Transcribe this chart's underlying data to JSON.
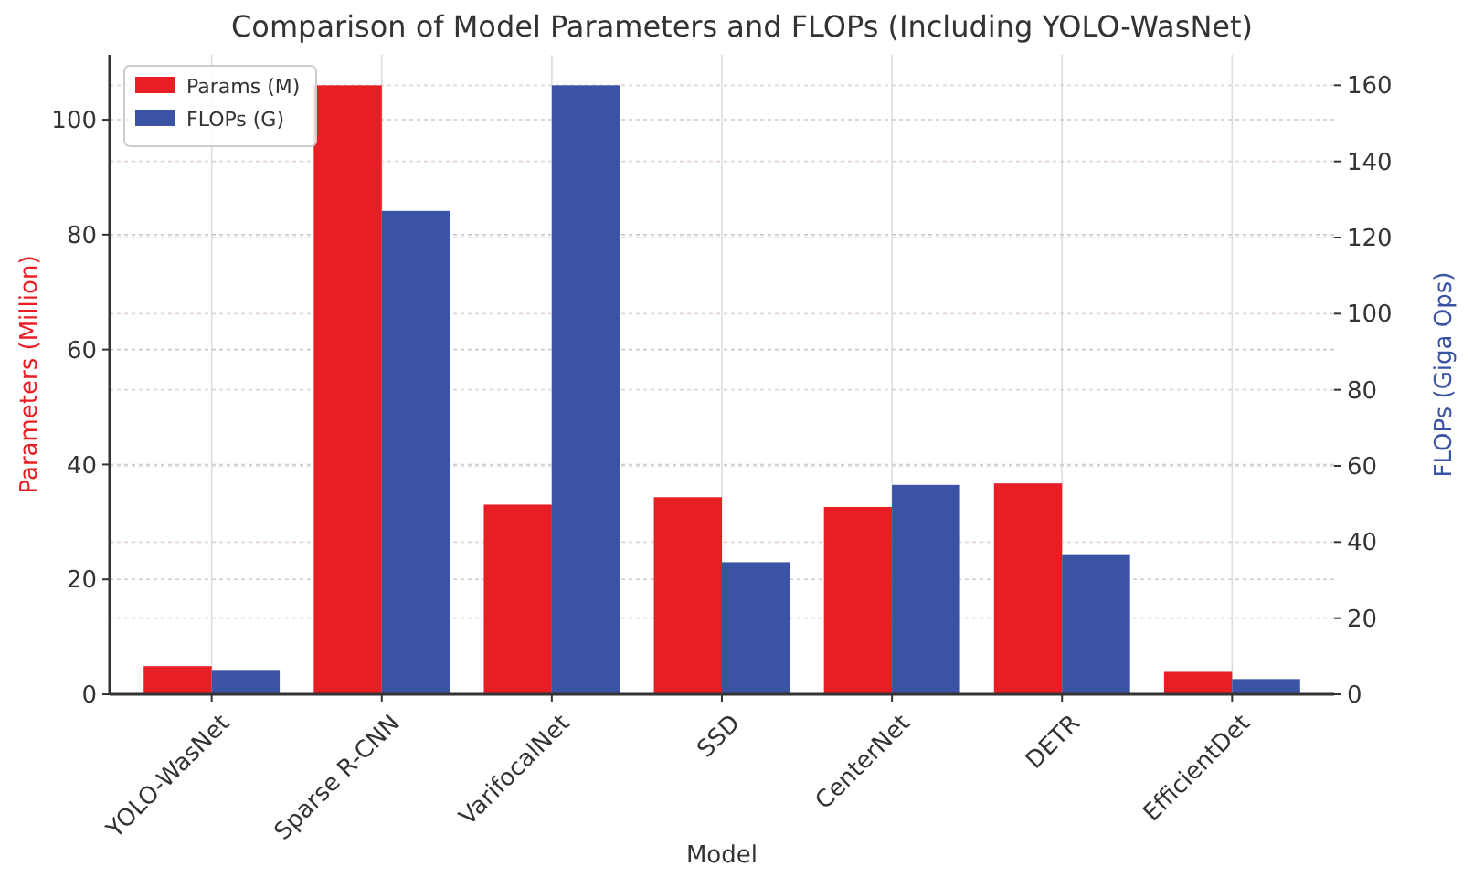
{
  "chart_data": {
    "type": "bar",
    "title": "Comparison of Model Parameters and FLOPs (Including YOLO-WasNet)",
    "xlabel": "Model",
    "ylabel": "Parameters (Million)",
    "y2label": "FLOPs (Giga Ops)",
    "categories": [
      "YOLO-WasNet",
      "Sparse R-CNN",
      "VarifocalNet",
      "SSD",
      "CenterNet",
      "DETR",
      "EfficientDet"
    ],
    "series": [
      {
        "name": "Params (M)",
        "color": "#e81e25",
        "values": [
          4.9,
          106,
          33,
          34.3,
          32.6,
          36.7,
          3.9
        ]
      },
      {
        "name": "FLOPs (G)",
        "color": "#3a53a4",
        "axis": "y2",
        "values": [
          6.4,
          127,
          160,
          34.7,
          55,
          36.8,
          4
        ]
      }
    ],
    "ylim": [
      0,
      111.3
    ],
    "yticks": [
      0,
      20,
      40,
      60,
      80,
      100
    ],
    "y2lim": [
      0,
      168
    ],
    "y2ticks": [
      0,
      20,
      40,
      60,
      80,
      100,
      120,
      140,
      160
    ],
    "grid": true,
    "legend": "top left"
  }
}
